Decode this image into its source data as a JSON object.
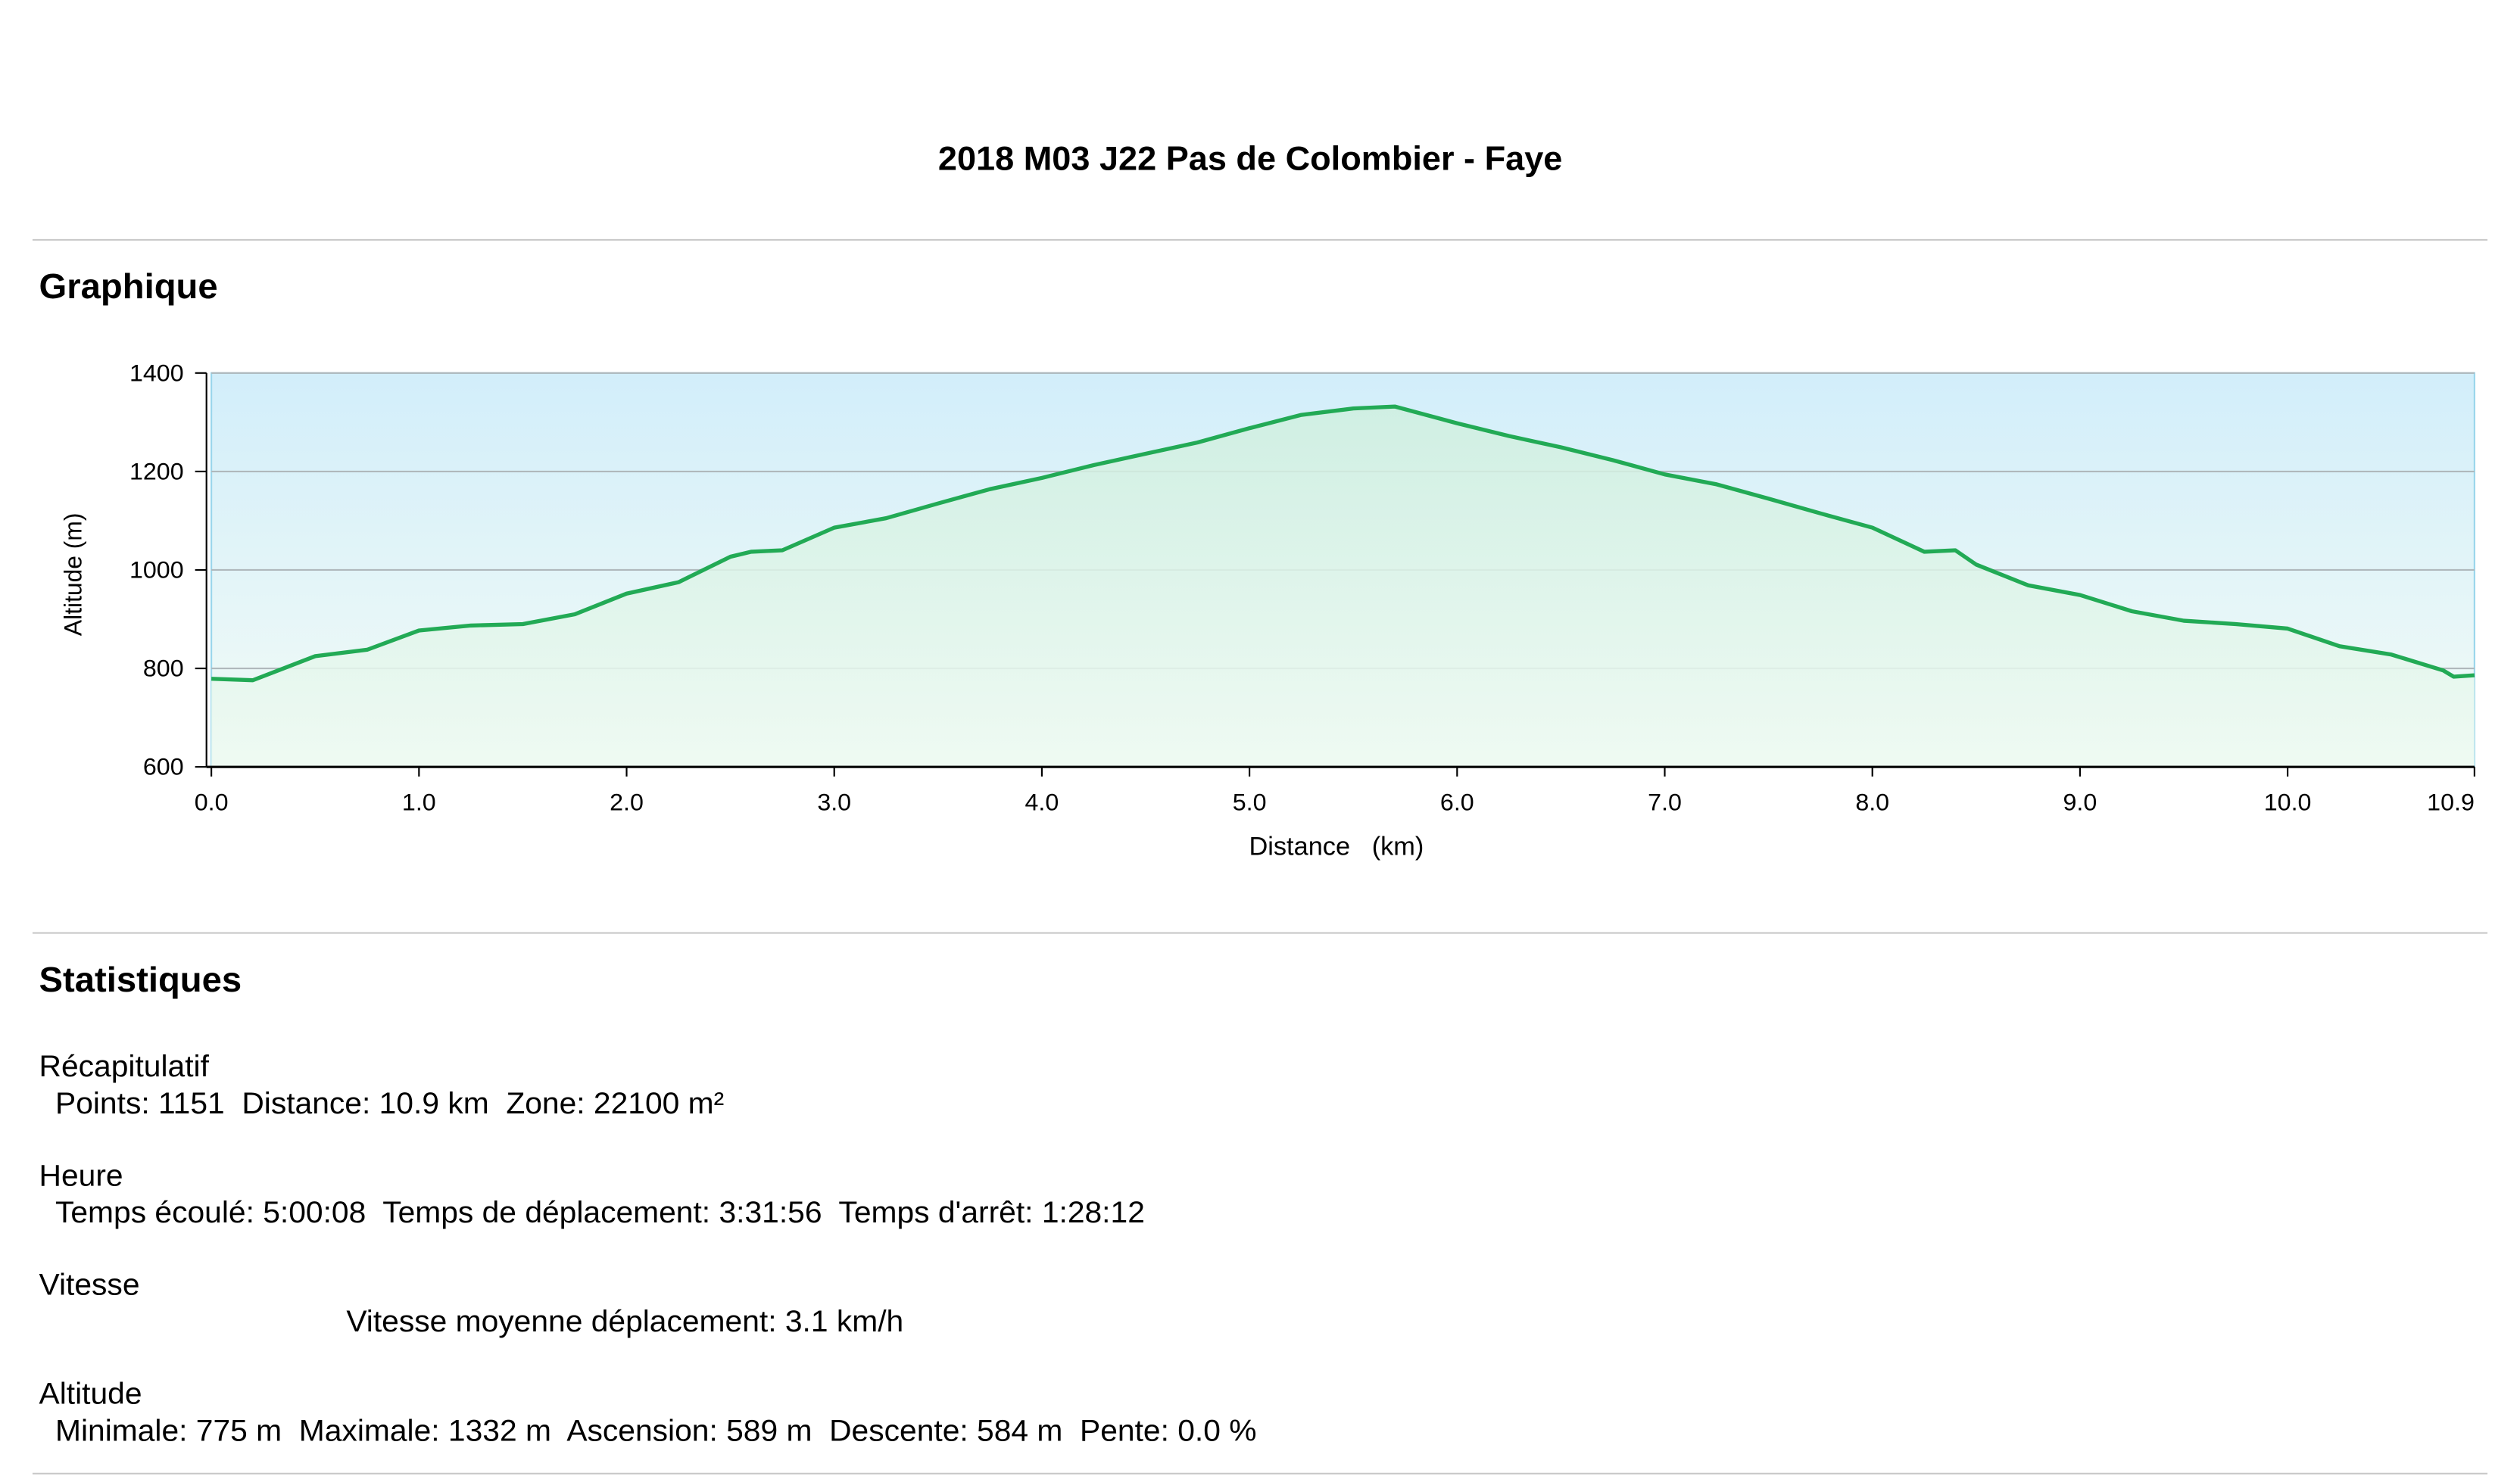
{
  "header": {
    "title": "2018 M03 J22 Pas de Colombier - Faye"
  },
  "graph_section": {
    "heading": "Graphique"
  },
  "chart_data": {
    "type": "area",
    "ylabel": "Altitude (m)",
    "xlabel": "Distance   (km)",
    "x": [
      0,
      0.2,
      0.5,
      0.75,
      1.0,
      1.25,
      1.5,
      1.75,
      2.0,
      2.25,
      2.5,
      2.6,
      2.75,
      3.0,
      3.25,
      3.5,
      3.75,
      4.0,
      4.25,
      4.5,
      4.75,
      5.0,
      5.25,
      5.5,
      5.7,
      6.0,
      6.25,
      6.5,
      6.75,
      7.0,
      7.25,
      7.5,
      7.75,
      8.0,
      8.25,
      8.4,
      8.5,
      8.75,
      9.0,
      9.25,
      9.5,
      9.75,
      10.0,
      10.25,
      10.5,
      10.75,
      10.8,
      10.9
    ],
    "values": [
      779,
      776,
      825,
      838,
      877,
      887,
      890,
      910,
      952,
      975,
      1027,
      1037,
      1040,
      1086,
      1105,
      1135,
      1164,
      1187,
      1213,
      1236,
      1259,
      1288,
      1315,
      1328,
      1332,
      1298,
      1272,
      1249,
      1223,
      1194,
      1174,
      1145,
      1115,
      1086,
      1037,
      1040,
      1011,
      969,
      949,
      916,
      897,
      890,
      881,
      845,
      828,
      796,
      783,
      786
    ],
    "color": "#22aa55",
    "xlim": [
      0,
      10.9
    ],
    "xticks": [
      {
        "value": 0,
        "label": "0.0"
      },
      {
        "value": 1,
        "label": "1.0"
      },
      {
        "value": 2,
        "label": "2.0"
      },
      {
        "value": 3,
        "label": "3.0"
      },
      {
        "value": 4,
        "label": "4.0"
      },
      {
        "value": 5,
        "label": "5.0"
      },
      {
        "value": 6,
        "label": "6.0"
      },
      {
        "value": 7,
        "label": "7.0"
      },
      {
        "value": 8,
        "label": "8.0"
      },
      {
        "value": 9,
        "label": "9.0"
      },
      {
        "value": 10,
        "label": "10.0"
      },
      10.9
    ],
    "ylim": [
      600,
      1400
    ],
    "yticks": [
      600,
      800,
      1000,
      1200,
      1400
    ],
    "grid": true
  },
  "stats": {
    "heading": "Statistiques",
    "groups": [
      {
        "label": "Récapitulatif",
        "line": "Points: 1151  Distance: 10.9 km  Zone: 22100 m²"
      },
      {
        "label": "Heure",
        "line": "Temps écoulé: 5:00:08  Temps de déplacement: 3:31:56  Temps d'arrêt: 1:28:12"
      },
      {
        "label": "Vitesse",
        "line": "Vitesse moyenne déplacement: 3.1 km/h"
      },
      {
        "label": "Altitude",
        "line": "Minimale: 775 m  Maximale: 1332 m  Ascension: 589 m  Descente: 584 m  Pente: 0.0 %"
      }
    ]
  }
}
